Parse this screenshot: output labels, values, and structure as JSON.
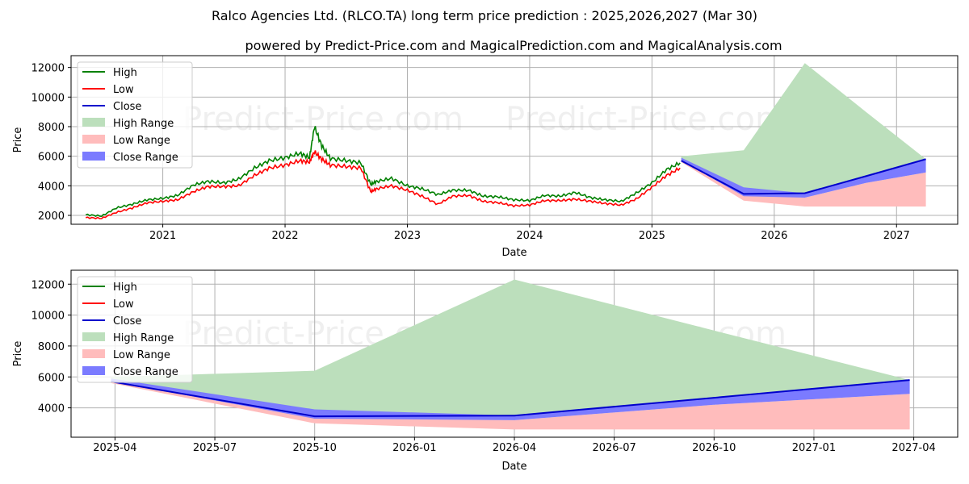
{
  "title": "Ralco Agencies Ltd. (RLCO.TA) long term price prediction : 2025,2026,2027 (Mar 30)",
  "subtitle": "powered by Predict-Price.com and MagicalPrediction.com and MagicalAnalysis.com",
  "watermark": "Predict-Price.com",
  "colors": {
    "high": "#008000",
    "low": "#ff0000",
    "close": "#0000cc",
    "high_range": "#bcdfbc",
    "low_range": "#ffbcbc",
    "close_range": "#7b7bff",
    "grid": "#b0b0b0"
  },
  "chart_data": [
    {
      "type": "line",
      "xlabel": "Date",
      "ylabel": "Price",
      "xlim": [
        2020.25,
        2027.5
      ],
      "ylim": [
        1400,
        12800
      ],
      "x_ticks": [
        {
          "v": 2021,
          "label": "2021"
        },
        {
          "v": 2022,
          "label": "2022"
        },
        {
          "v": 2023,
          "label": "2023"
        },
        {
          "v": 2024,
          "label": "2024"
        },
        {
          "v": 2025,
          "label": "2025"
        },
        {
          "v": 2026,
          "label": "2026"
        },
        {
          "v": 2027,
          "label": "2027"
        }
      ],
      "y_ticks": [
        {
          "v": 2000,
          "label": "2000"
        },
        {
          "v": 4000,
          "label": "4000"
        },
        {
          "v": 6000,
          "label": "6000"
        },
        {
          "v": 8000,
          "label": "8000"
        },
        {
          "v": 10000,
          "label": "10000"
        },
        {
          "v": 12000,
          "label": "12000"
        }
      ],
      "legend": [
        "High",
        "Low",
        "Close",
        "High Range",
        "Low Range",
        "Close Range"
      ],
      "legend_position": "top-left",
      "grid": true,
      "history": {
        "x": [
          2020.37,
          2020.5,
          2020.62,
          2020.75,
          2020.87,
          2021.0,
          2021.12,
          2021.25,
          2021.37,
          2021.5,
          2021.62,
          2021.75,
          2021.87,
          2022.0,
          2022.12,
          2022.2,
          2022.24,
          2022.3,
          2022.37,
          2022.5,
          2022.62,
          2022.7,
          2022.75,
          2022.87,
          2023.0,
          2023.12,
          2023.25,
          2023.37,
          2023.5,
          2023.62,
          2023.75,
          2023.87,
          2024.0,
          2024.12,
          2024.25,
          2024.37,
          2024.5,
          2024.62,
          2024.75,
          2024.87,
          2025.0,
          2025.12,
          2025.23
        ],
        "high": [
          2050,
          1950,
          2500,
          2750,
          3050,
          3150,
          3350,
          4050,
          4300,
          4200,
          4450,
          5200,
          5700,
          5900,
          6200,
          5900,
          8000,
          6700,
          5850,
          5700,
          5550,
          4100,
          4300,
          4500,
          4000,
          3800,
          3400,
          3700,
          3700,
          3300,
          3250,
          3050,
          3000,
          3350,
          3300,
          3550,
          3200,
          3050,
          2950,
          3500,
          4200,
          5100,
          5550
        ],
        "low": [
          1850,
          1800,
          2200,
          2500,
          2850,
          2950,
          3050,
          3600,
          3950,
          3950,
          4000,
          4700,
          5200,
          5400,
          5700,
          5600,
          6300,
          5800,
          5400,
          5300,
          5200,
          3600,
          3800,
          4000,
          3700,
          3300,
          2750,
          3300,
          3350,
          2950,
          2850,
          2650,
          2700,
          3000,
          3000,
          3100,
          2950,
          2800,
          2700,
          3100,
          3900,
          4700,
          5200
        ]
      },
      "forecast": {
        "x": [
          2025.24,
          2025.75,
          2026.25,
          2026.75,
          2027.24
        ],
        "high_upper": [
          6000,
          6400,
          12300,
          9000,
          5800
        ],
        "high_lower": [
          5700,
          3500,
          3500,
          4500,
          5800
        ],
        "low_upper": [
          5700,
          3400,
          3200,
          4200,
          4900
        ],
        "low_lower": [
          5600,
          3000,
          2600,
          2600,
          2600
        ],
        "close_upper": [
          5900,
          3900,
          3500,
          4700,
          5800
        ],
        "close_lower": [
          5700,
          3300,
          3200,
          4200,
          4900
        ],
        "close": [
          5700,
          3450,
          3500,
          4650,
          5800
        ]
      }
    },
    {
      "type": "line",
      "xlabel": "Date",
      "ylabel": "Price",
      "xlim": [
        2025.14,
        2027.36
      ],
      "ylim": [
        2100,
        12900
      ],
      "x_ticks": [
        {
          "v": 2025.25,
          "label": "2025-04"
        },
        {
          "v": 2025.5,
          "label": "2025-07"
        },
        {
          "v": 2025.75,
          "label": "2025-10"
        },
        {
          "v": 2026.0,
          "label": "2026-01"
        },
        {
          "v": 2026.25,
          "label": "2026-04"
        },
        {
          "v": 2026.5,
          "label": "2026-07"
        },
        {
          "v": 2026.75,
          "label": "2026-10"
        },
        {
          "v": 2027.0,
          "label": "2027-01"
        },
        {
          "v": 2027.25,
          "label": "2027-04"
        }
      ],
      "y_ticks": [
        {
          "v": 4000,
          "label": "4000"
        },
        {
          "v": 6000,
          "label": "6000"
        },
        {
          "v": 8000,
          "label": "8000"
        },
        {
          "v": 10000,
          "label": "10000"
        },
        {
          "v": 12000,
          "label": "12000"
        }
      ],
      "legend": [
        "High",
        "Low",
        "Close",
        "High Range",
        "Low Range",
        "Close Range"
      ],
      "legend_position": "top-left",
      "grid": true,
      "forecast": {
        "x": [
          2025.24,
          2025.75,
          2026.25,
          2026.75,
          2027.24
        ],
        "high_upper": [
          6000,
          6400,
          12300,
          9000,
          5800
        ],
        "high_lower": [
          5700,
          3500,
          3500,
          4500,
          5800
        ],
        "low_upper": [
          5700,
          3400,
          3200,
          4200,
          4900
        ],
        "low_lower": [
          5600,
          3000,
          2600,
          2600,
          2600
        ],
        "close_upper": [
          5900,
          3900,
          3500,
          4700,
          5800
        ],
        "close_lower": [
          5700,
          3300,
          3200,
          4200,
          4900
        ],
        "close": [
          5700,
          3450,
          3500,
          4650,
          5800
        ]
      }
    }
  ]
}
